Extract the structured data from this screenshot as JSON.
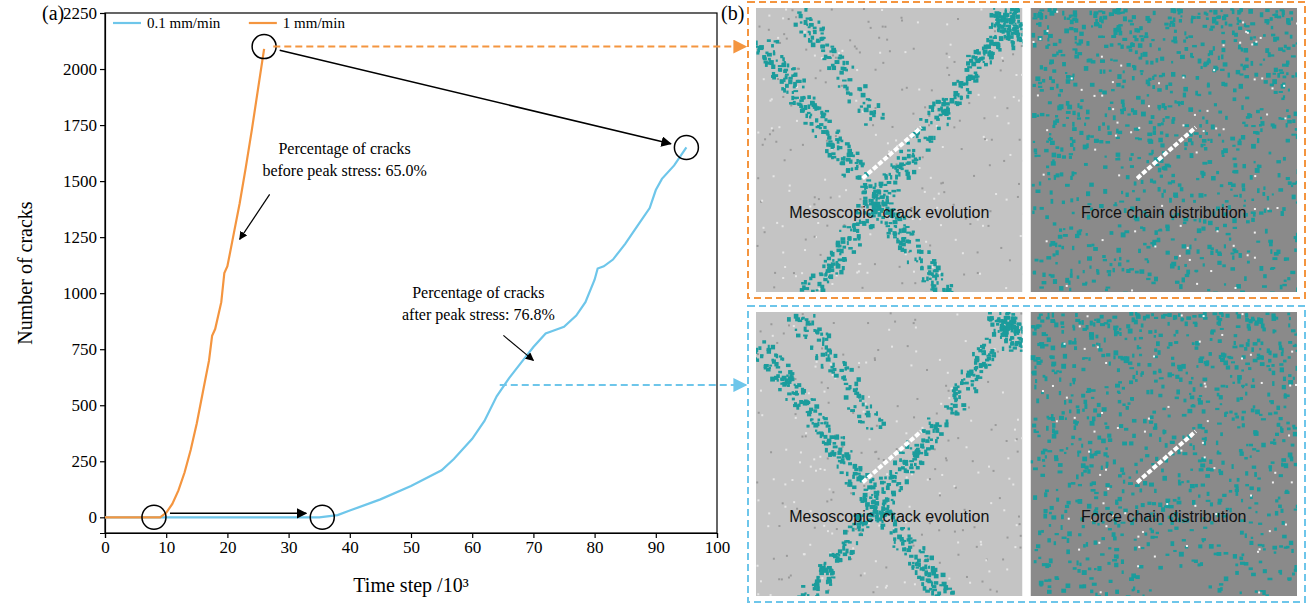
{
  "chart_data": {
    "type": "line",
    "panel_label": "(a)",
    "x_label": "Time step /10³",
    "y_label": "Number of cracks",
    "xlim": [
      0,
      100
    ],
    "xticks": [
      0,
      10,
      20,
      30,
      40,
      50,
      60,
      70,
      80,
      90,
      100
    ],
    "ylim": [
      -70,
      2250
    ],
    "yticks": [
      0,
      250,
      500,
      750,
      1000,
      1250,
      1500,
      1750,
      2000,
      2250
    ],
    "legend": "upper left",
    "series": [
      {
        "name": "0.1 mm/min",
        "color": "#6ec6ea",
        "line_style": "solid",
        "x": [
          0,
          10,
          20,
          30,
          35,
          38,
          40,
          45,
          50,
          55,
          57,
          60,
          62,
          64,
          66,
          68,
          70,
          72,
          73,
          75,
          77,
          78.5,
          80,
          80.5,
          81.5,
          83,
          85,
          87,
          89,
          90,
          91,
          93,
          95
        ],
        "values": [
          0,
          0,
          0,
          0,
          0,
          10,
          30,
          80,
          140,
          210,
          260,
          350,
          430,
          540,
          620,
          690,
          760,
          820,
          830,
          850,
          900,
          960,
          1060,
          1110,
          1120,
          1150,
          1220,
          1300,
          1380,
          1460,
          1510,
          1570,
          1650
        ]
      },
      {
        "name": "1 mm/min",
        "color": "#f4953f",
        "line_style": "solid",
        "x": [
          0,
          5,
          9,
          10,
          11,
          12,
          13,
          14,
          15,
          16,
          17,
          17.5,
          18,
          19,
          19.5,
          20,
          21,
          22,
          23,
          24,
          25,
          26
        ],
        "values": [
          0,
          0,
          0,
          20,
          60,
          120,
          200,
          300,
          420,
          560,
          700,
          810,
          840,
          960,
          1090,
          1120,
          1260,
          1400,
          1560,
          1730,
          1910,
          2090
        ]
      }
    ],
    "annotations": [
      {
        "lines": [
          "Percentage of cracks",
          "before peak stress: 65.0%"
        ],
        "x": 22,
        "y": 1240
      },
      {
        "lines": [
          "Percentage of cracks",
          "after peak stress: 76.8%"
        ],
        "x": 70,
        "y": 700
      }
    ],
    "highlight_pairs": [
      [
        {
          "x": 26,
          "y": 2100
        },
        {
          "x": 95,
          "y": 1650
        }
      ],
      [
        {
          "x": 8,
          "y": 0
        },
        {
          "x": 35.5,
          "y": 0
        }
      ]
    ]
  },
  "panel_b": {
    "label": "(b)",
    "rows": [
      {
        "color": "#f4953f",
        "link": {
          "x": 27.5,
          "y": 2100
        },
        "images": [
          "Mesoscopic  crack evolution",
          "Force chain distribution"
        ]
      },
      {
        "color": "#6ec6ea",
        "link": {
          "x": 64.5,
          "y": 590
        },
        "images": [
          "Mesoscopic  crack evolution",
          "Force chain distribution"
        ]
      }
    ]
  }
}
